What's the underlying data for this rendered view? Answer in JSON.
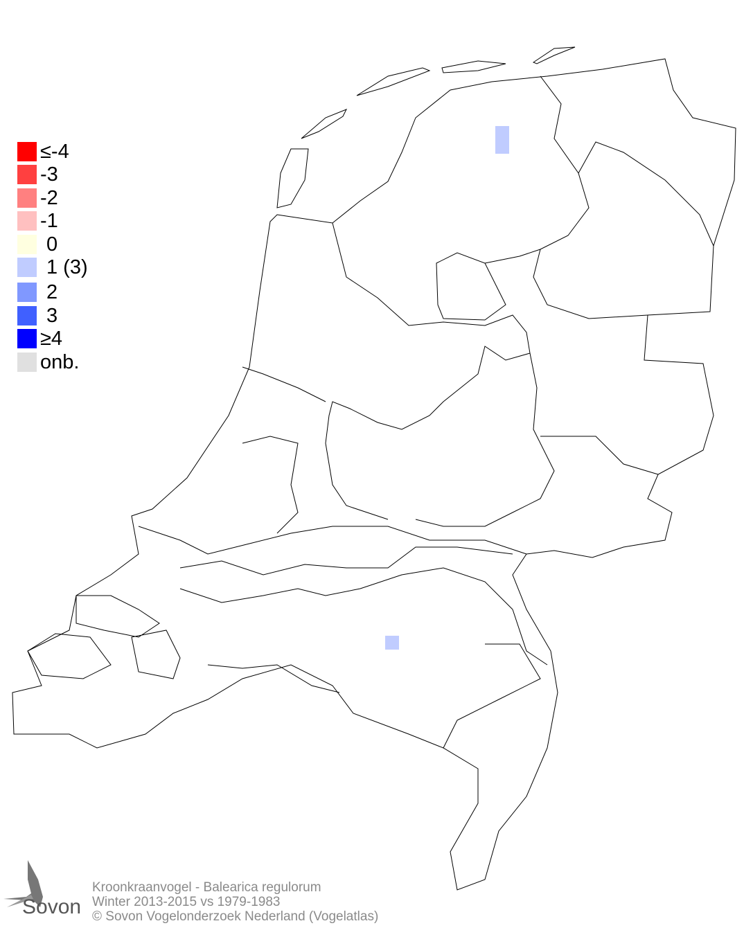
{
  "legend": {
    "items": [
      {
        "label": "≤-4",
        "color": "#ff0000"
      },
      {
        "label": "-3",
        "color": "#ff4040"
      },
      {
        "label": "-2",
        "color": "#ff8080"
      },
      {
        "label": "-1",
        "color": "#ffc0c0"
      },
      {
        "label": "0",
        "color": "#ffffe0"
      },
      {
        "label": "1 (3)",
        "color": "#c0ccff"
      },
      {
        "label": "2",
        "color": "#8098ff"
      },
      {
        "label": "3",
        "color": "#4060ff"
      },
      {
        "label": "≥4",
        "color": "#0000ff"
      },
      {
        "label": "onb.",
        "color": "#e0e0e0"
      }
    ]
  },
  "map": {
    "cells": [
      {
        "region": "Friesland",
        "class": "1",
        "color": "#c0ccff"
      },
      {
        "region": "Noord-Brabant",
        "class": "1",
        "color": "#c0ccff"
      }
    ]
  },
  "footer": {
    "species": "Kroonkraanvogel - Balearica regulorum",
    "period": "Winter 2013-2015 vs 1979-1983",
    "copyright": "© Sovon Vogelonderzoek Nederland (Vogelatlas)"
  },
  "logo": {
    "text": "Sovon"
  }
}
